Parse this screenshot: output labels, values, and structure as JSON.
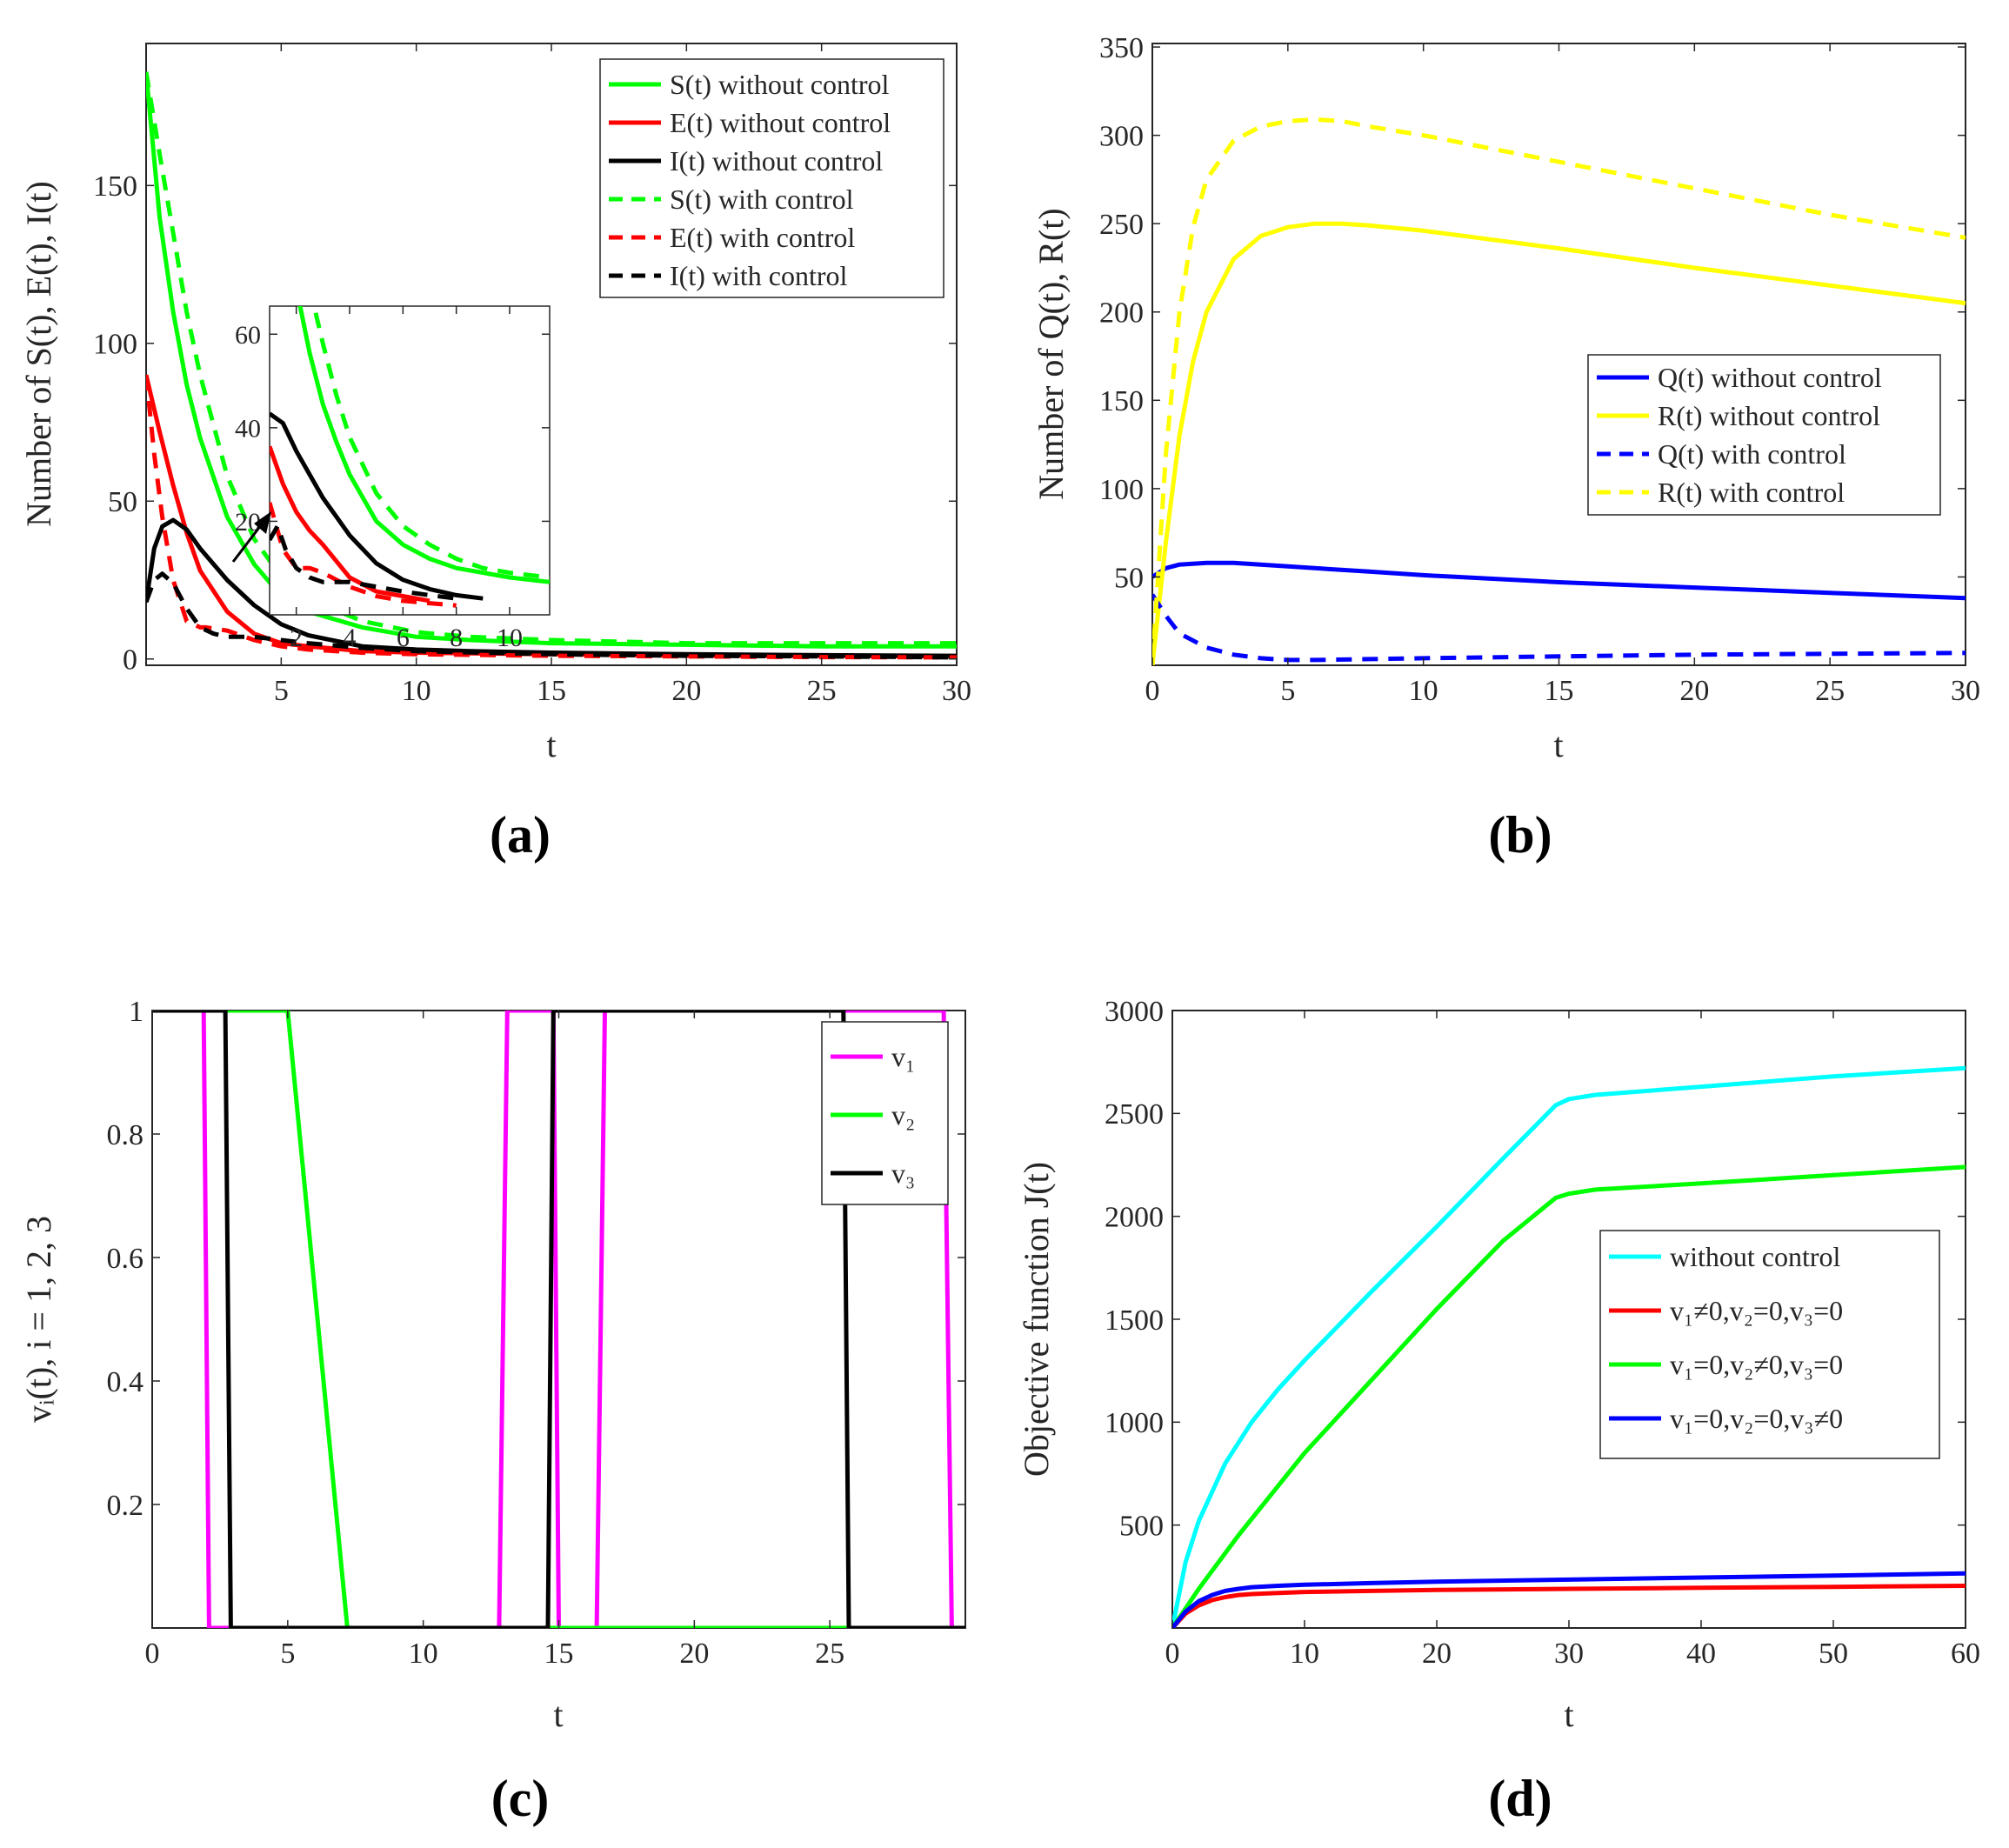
{
  "chart_data": [
    {
      "id": "a",
      "panel_label": "(a)",
      "type": "line",
      "xlabel": "t",
      "ylabel": "Number of S(t), E(t), I(t)",
      "xlim": [
        0,
        30
      ],
      "ylim": [
        -2,
        195
      ],
      "xticks": [
        5,
        10,
        15,
        20,
        25,
        30
      ],
      "yticks": [
        0,
        50,
        100,
        150
      ],
      "grid": false,
      "legend_position": "top-right",
      "series": [
        {
          "name": "S(t) without control",
          "color": "#00ff00",
          "dash": "solid",
          "x": [
            0,
            0.5,
            1,
            1.5,
            2,
            3,
            4,
            5,
            6,
            8,
            10,
            12,
            15,
            20,
            25,
            30
          ],
          "y": [
            186,
            140,
            110,
            87,
            70,
            45,
            30,
            20,
            15,
            10,
            7,
            6,
            5,
            4.5,
            4,
            4
          ]
        },
        {
          "name": "E(t) without control",
          "color": "#ff0000",
          "dash": "solid",
          "x": [
            0,
            0.5,
            1,
            1.5,
            2,
            3,
            4,
            5,
            6,
            8,
            10,
            15,
            20,
            25,
            30
          ],
          "y": [
            90,
            72,
            55,
            40,
            28,
            15,
            8,
            5,
            4,
            2.5,
            2,
            1.5,
            1,
            1,
            0.8
          ]
        },
        {
          "name": "I(t) without control",
          "color": "#000000",
          "dash": "solid",
          "x": [
            0,
            0.3,
            0.6,
            1,
            1.5,
            2,
            3,
            4,
            5,
            6,
            8,
            10,
            12,
            15,
            20,
            25,
            30
          ],
          "y": [
            18,
            35,
            42,
            44,
            41,
            35,
            25,
            17,
            11,
            7.5,
            4,
            3,
            2.5,
            2,
            1.5,
            1.2,
            1
          ]
        },
        {
          "name": "S(t) with control",
          "color": "#00ff00",
          "dash": "dashed",
          "x": [
            0,
            0.5,
            1,
            1.5,
            2,
            3,
            4,
            5,
            6,
            8,
            10,
            12,
            15,
            20,
            25,
            30
          ],
          "y": [
            186,
            160,
            135,
            110,
            90,
            58,
            38,
            26,
            19,
            12,
            8.5,
            7,
            6,
            5,
            5,
            5
          ]
        },
        {
          "name": "E(t) with control",
          "color": "#ff0000",
          "dash": "dashed",
          "x": [
            0,
            0.3,
            0.6,
            1,
            1.5,
            2,
            2.2,
            3,
            4,
            5,
            6,
            8,
            10,
            15,
            20,
            25,
            30
          ],
          "y": [
            90,
            65,
            45,
            25,
            12,
            10,
            10,
            9,
            6,
            4,
            3,
            2,
            1.5,
            1,
            0.8,
            0.6,
            0.5
          ]
        },
        {
          "name": "I(t) with control",
          "color": "#000000",
          "dash": "dashed",
          "x": [
            0,
            0.3,
            0.6,
            1,
            1.5,
            2,
            2.5,
            3,
            4,
            5,
            6,
            8,
            10,
            15,
            20,
            25,
            30
          ],
          "y": [
            18,
            25,
            27,
            24,
            16,
            10,
            8,
            7,
            7,
            6,
            5,
            3.5,
            2.5,
            1.5,
            1,
            0.8,
            0.5
          ]
        }
      ],
      "inset": {
        "xlim": [
          1,
          11.5
        ],
        "ylim": [
          0,
          66
        ],
        "xticks": [
          2,
          4,
          6,
          8,
          10
        ],
        "yticks": [
          20,
          40,
          60
        ],
        "series": [
          {
            "color": "#00ff00",
            "dash": "solid",
            "x": [
              2,
              2.5,
              3,
              3.5,
              4,
              5,
              6,
              7,
              8,
              9,
              10,
              11.5
            ],
            "y": [
              70,
              56,
              45,
              37,
              30,
              20,
              15,
              12,
              10,
              9,
              8,
              7
            ]
          },
          {
            "color": "#00ff00",
            "dash": "dashed",
            "x": [
              2.5,
              3,
              3.5,
              4,
              5,
              6,
              7,
              8,
              9,
              10,
              11.5
            ],
            "y": [
              70,
              58,
              47,
              38,
              26,
              19,
              15,
              12,
              10,
              9,
              8
            ]
          },
          {
            "color": "#000000",
            "dash": "solid",
            "x": [
              1,
              1.5,
              2,
              2.5,
              3,
              4,
              5,
              6,
              7,
              8,
              9
            ],
            "y": [
              43,
              41,
              35,
              30,
              25,
              17,
              11,
              7.5,
              5.5,
              4.2,
              3.5
            ]
          },
          {
            "color": "#ff0000",
            "dash": "solid",
            "x": [
              1,
              1.5,
              2,
              2.5,
              3,
              4,
              5,
              6,
              7
            ],
            "y": [
              36,
              28,
              22,
              18,
              15,
              8,
              5,
              4,
              3
            ]
          },
          {
            "color": "#ff0000",
            "dash": "dashed",
            "x": [
              1,
              1.5,
              2,
              2.5,
              3,
              4,
              5,
              6,
              7,
              8
            ],
            "y": [
              24,
              14,
              10,
              10,
              9,
              6,
              4,
              3,
              2.5,
              2
            ]
          },
          {
            "color": "#000000",
            "dash": "dashed",
            "x": [
              1,
              1.3,
              1.6,
              2,
              2.5,
              3,
              4,
              5,
              6,
              7,
              8
            ],
            "y": [
              16,
              19,
              14,
              10,
              8,
              7,
              7,
              6,
              5,
              4.2,
              3.5
            ]
          }
        ]
      }
    },
    {
      "id": "b",
      "panel_label": "(b)",
      "type": "line",
      "xlabel": "t",
      "ylabel": "Number of Q(t), R(t)",
      "xlim": [
        0,
        30
      ],
      "ylim": [
        0,
        352
      ],
      "xticks": [
        0,
        5,
        10,
        15,
        20,
        25,
        30
      ],
      "yticks": [
        50,
        100,
        150,
        200,
        250,
        300,
        350
      ],
      "grid": false,
      "legend_position": "right",
      "series": [
        {
          "name": "Q(t) without control",
          "color": "#0000ff",
          "dash": "solid",
          "x": [
            0,
            0.5,
            1,
            2,
            3,
            5,
            8,
            10,
            15,
            20,
            25,
            30
          ],
          "y": [
            50,
            55,
            57,
            58,
            58,
            56,
            53,
            51,
            47,
            44,
            41,
            38
          ]
        },
        {
          "name": "R(t) without control",
          "color": "#ffff00",
          "dash": "solid",
          "x": [
            0,
            0.5,
            1,
            1.5,
            2,
            3,
            4,
            5,
            6,
            7,
            8,
            10,
            15,
            20,
            25,
            30
          ],
          "y": [
            0,
            70,
            130,
            172,
            200,
            230,
            243,
            248,
            250,
            250,
            249,
            246,
            236,
            225,
            215,
            205
          ]
        },
        {
          "name": "Q(t) with control",
          "color": "#0000ff",
          "dash": "dashed",
          "x": [
            0,
            0.5,
            1,
            2,
            3,
            4,
            5,
            6,
            8,
            10,
            15,
            20,
            25,
            30
          ],
          "y": [
            40,
            28,
            18,
            10,
            6,
            4,
            3,
            3,
            3.5,
            4,
            5,
            6,
            6.5,
            7
          ]
        },
        {
          "name": "R(t) with control",
          "color": "#ffff00",
          "dash": "dashed",
          "x": [
            0,
            0.5,
            1,
            1.5,
            2,
            3,
            4,
            5,
            6,
            7,
            8,
            10,
            15,
            20,
            25,
            30
          ],
          "y": [
            0,
            120,
            200,
            248,
            275,
            297,
            305,
            308,
            309,
            308,
            305,
            300,
            285,
            270,
            255,
            242
          ]
        }
      ]
    },
    {
      "id": "c",
      "panel_label": "(c)",
      "type": "line",
      "xlabel": "t",
      "ylabel": "vᵢ(t), i = 1, 2, 3",
      "xlim": [
        0,
        30
      ],
      "ylim": [
        0,
        1
      ],
      "xticks": [
        0,
        5,
        10,
        15,
        20,
        25
      ],
      "yticks": [
        0.2,
        0.4,
        0.6,
        0.8,
        1
      ],
      "grid": false,
      "legend_position": "top-right",
      "series": [
        {
          "name": "v₁",
          "color": "#ff00ff",
          "dash": "solid",
          "x": [
            0,
            1.9,
            2.1,
            12.8,
            13.1,
            14.8,
            15.0,
            16.4,
            16.7,
            29.2,
            29.5,
            30
          ],
          "y": [
            1,
            1,
            0,
            0,
            1,
            1,
            0,
            0,
            1,
            1,
            0,
            0
          ]
        },
        {
          "name": "v₂",
          "color": "#00ff00",
          "dash": "solid",
          "x": [
            0,
            5.0,
            7.2,
            14.6,
            14.9,
            30
          ],
          "y": [
            1,
            1,
            0,
            0,
            0,
            0
          ]
        },
        {
          "name": "v₃",
          "color": "#000000",
          "dash": "solid",
          "x": [
            0,
            2.7,
            2.9,
            14.6,
            14.8,
            25.5,
            25.7,
            30
          ],
          "y": [
            1,
            1,
            0,
            0,
            1,
            1,
            0,
            0
          ]
        }
      ]
    },
    {
      "id": "d",
      "panel_label": "(d)",
      "type": "line",
      "xlabel": "t",
      "ylabel": "Objective function J(t)",
      "xlim": [
        0,
        60
      ],
      "ylim": [
        0,
        3000
      ],
      "xticks": [
        0,
        10,
        20,
        30,
        40,
        50,
        60
      ],
      "yticks": [
        500,
        1000,
        1500,
        2000,
        2500,
        3000
      ],
      "grid": false,
      "legend_position": "right",
      "series": [
        {
          "name": "without control",
          "color": "#00ffff",
          "dash": "solid",
          "x": [
            0,
            1,
            2,
            4,
            6,
            8,
            10,
            15,
            20,
            25,
            29,
            30,
            32,
            40,
            50,
            60
          ],
          "y": [
            0,
            320,
            520,
            800,
            1000,
            1160,
            1300,
            1630,
            1950,
            2280,
            2540,
            2570,
            2590,
            2630,
            2680,
            2720
          ]
        },
        {
          "name": "v₁≠0,v₂=0,v₃=0",
          "color": "#ff0000",
          "dash": "solid",
          "x": [
            0,
            1,
            2,
            3,
            4,
            5,
            6,
            8,
            10,
            15,
            20,
            30,
            40,
            50,
            60
          ],
          "y": [
            0,
            70,
            110,
            135,
            150,
            160,
            165,
            170,
            175,
            180,
            185,
            190,
            195,
            200,
            205
          ]
        },
        {
          "name": "v₁=0,v₂≠0,v₃=0",
          "color": "#00ff00",
          "dash": "solid",
          "x": [
            0,
            2,
            5,
            10,
            15,
            20,
            25,
            29,
            30,
            32,
            40,
            50,
            60
          ],
          "y": [
            0,
            190,
            450,
            850,
            1200,
            1550,
            1880,
            2090,
            2110,
            2130,
            2160,
            2200,
            2240
          ]
        },
        {
          "name": "v₁=0,v₂=0,v₃≠0",
          "color": "#0000ff",
          "dash": "solid",
          "x": [
            0,
            1,
            2,
            3,
            4,
            5,
            6,
            8,
            10,
            15,
            20,
            30,
            40,
            50,
            60
          ],
          "y": [
            0,
            80,
            130,
            160,
            180,
            190,
            198,
            205,
            210,
            218,
            225,
            235,
            245,
            255,
            265
          ]
        }
      ]
    }
  ]
}
